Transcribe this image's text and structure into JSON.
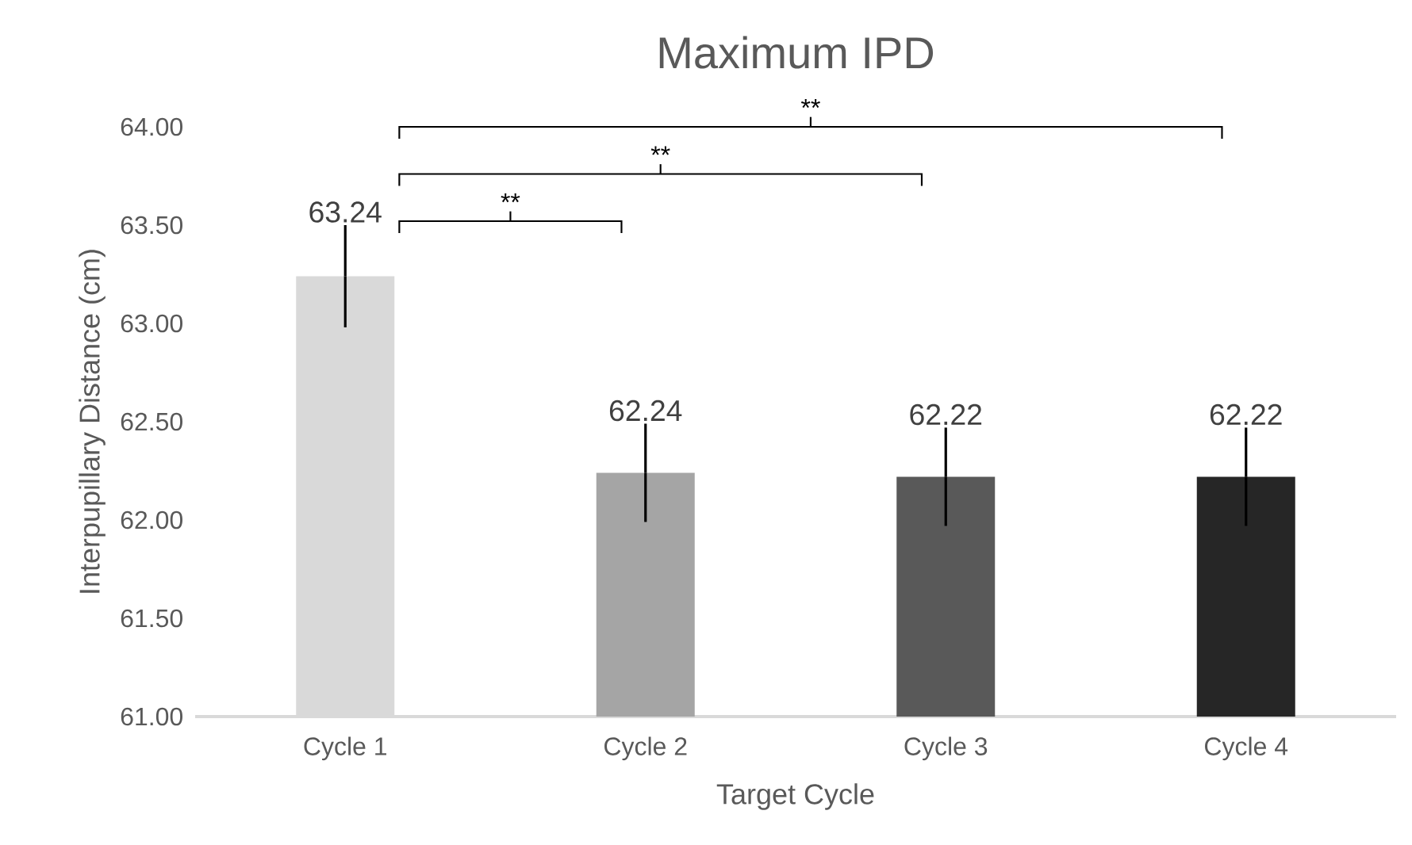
{
  "chart_data": {
    "type": "bar",
    "title": "Maximum IPD",
    "xlabel": "Target Cycle",
    "ylabel": "Interpupillary Distance (cm)",
    "categories": [
      "Cycle 1",
      "Cycle 2",
      "Cycle 3",
      "Cycle 4"
    ],
    "values": [
      63.24,
      62.24,
      62.22,
      62.22
    ],
    "errors": [
      0.26,
      0.25,
      0.25,
      0.25
    ],
    "colors": [
      "#d9d9d9",
      "#a5a5a5",
      "#595959",
      "#262626"
    ],
    "ylim": [
      61,
      64
    ],
    "yticks": [
      {
        "value": 61,
        "label": "61.00"
      },
      {
        "value": 61.5,
        "label": "61.50"
      },
      {
        "value": 62,
        "label": "62.00"
      },
      {
        "value": 62.5,
        "label": "62.50"
      },
      {
        "value": 63,
        "label": "63.00"
      },
      {
        "value": 63.5,
        "label": "63.50"
      },
      {
        "value": 64,
        "label": "64.00"
      }
    ],
    "data_labels": true,
    "grid": false,
    "annotations": [
      "**",
      "**",
      "**"
    ]
  }
}
